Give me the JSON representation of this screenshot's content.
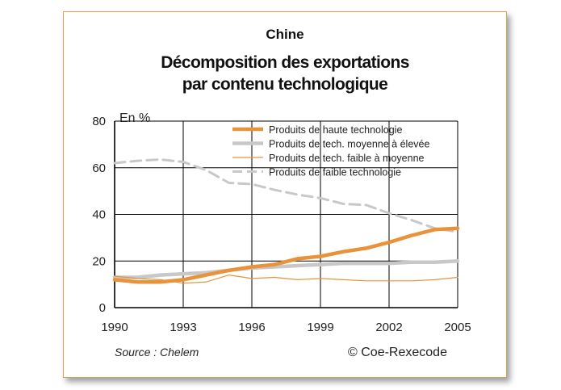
{
  "region": "Chine",
  "title_line1": "Décomposition des exportations",
  "title_line2": "par contenu technologique",
  "source": "Source : Chelem",
  "copyright": "© Coe-Rexecode",
  "chart_data": {
    "type": "line",
    "title": "Décomposition des exportations par contenu technologique",
    "ylabel": "En %",
    "xlabel": "",
    "xlim": [
      1990,
      2005
    ],
    "ylim": [
      0,
      80
    ],
    "x_ticks": [
      1990,
      1993,
      1996,
      1999,
      2002,
      2005
    ],
    "y_ticks": [
      0,
      20,
      40,
      60,
      80
    ],
    "grid": true,
    "legend_position": "top-right",
    "x": [
      1990,
      1991,
      1992,
      1993,
      1994,
      1995,
      1996,
      1997,
      1998,
      1999,
      2000,
      2001,
      2002,
      2003,
      2004,
      2005
    ],
    "series": [
      {
        "name": "Produits de haute technologie",
        "color": "#e8923a",
        "style": "thick",
        "values": [
          12,
          11,
          11,
          12,
          14,
          16,
          17.5,
          18.5,
          21,
          22,
          24,
          25.5,
          28,
          31,
          33.5,
          34
        ]
      },
      {
        "name": "Produits de tech. moyenne à élevée",
        "color": "#c8c8c8",
        "style": "thick",
        "values": [
          13,
          13,
          14,
          14.5,
          15,
          16,
          17,
          17.5,
          18,
          18.5,
          19,
          19,
          19,
          19.5,
          19.5,
          20
        ]
      },
      {
        "name": "Produits de tech. faible à moyenne",
        "color": "#e8923a",
        "style": "thin",
        "values": [
          13.5,
          12.5,
          12,
          10.5,
          11,
          14,
          12.5,
          13,
          12,
          12.5,
          12,
          11.5,
          11.5,
          11.5,
          12,
          13
        ]
      },
      {
        "name": "Produits de faible technologie",
        "color": "#c8c8c8",
        "style": "dashed",
        "values": [
          62,
          63,
          63.5,
          62.5,
          59,
          53.5,
          53,
          50.5,
          48.5,
          47,
          44.5,
          44,
          40.5,
          37.5,
          34,
          32.5
        ]
      }
    ]
  }
}
